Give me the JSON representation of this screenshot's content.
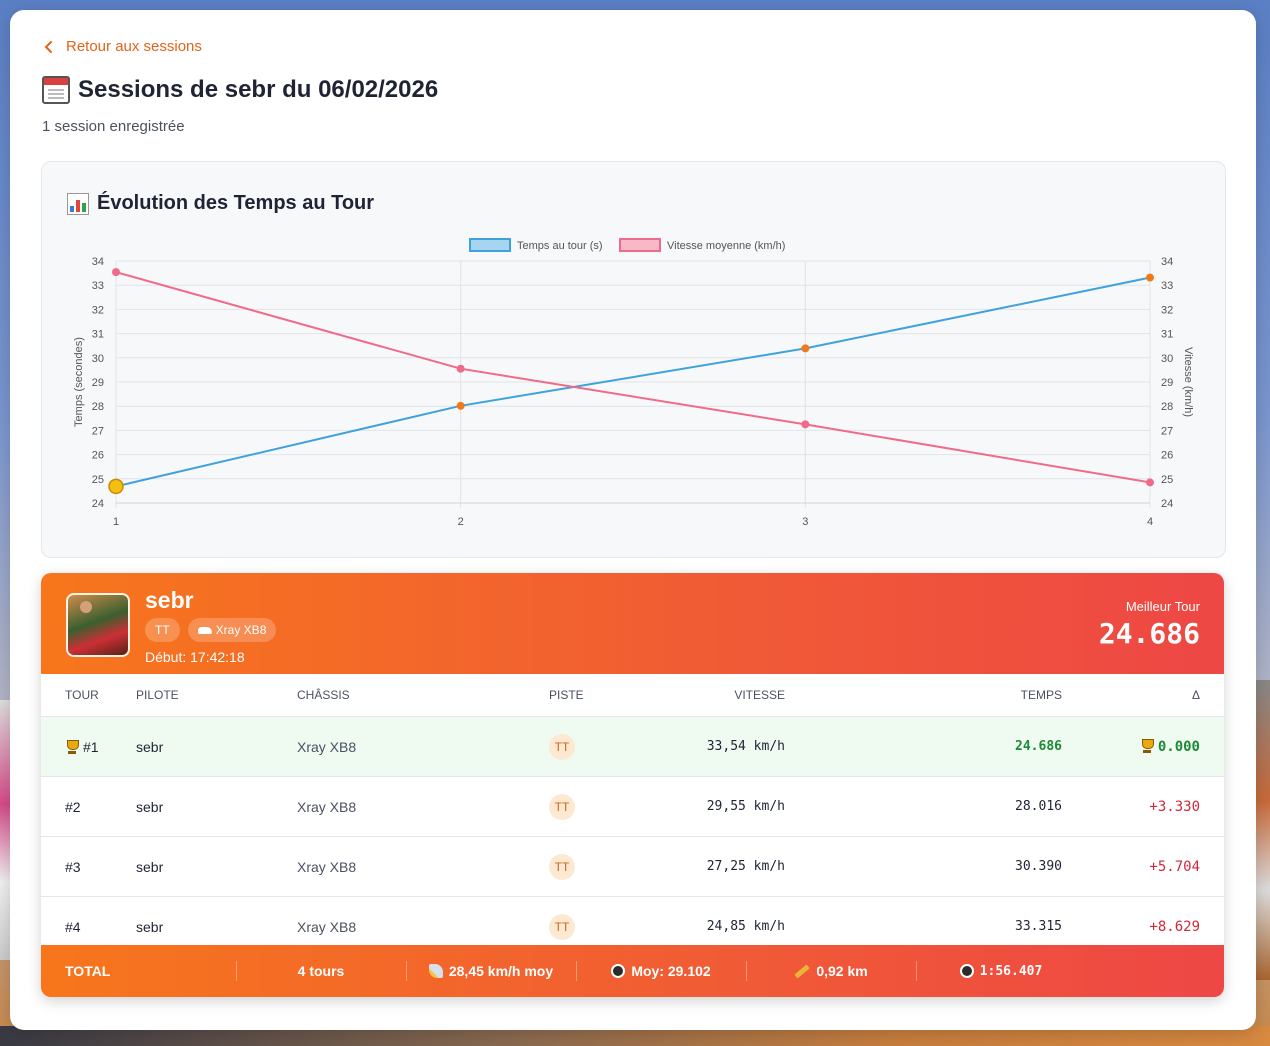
{
  "nav": {
    "back_label": "Retour aux sessions"
  },
  "header": {
    "title": "Sessions de sebr du 06/02/2026",
    "subtitle": "1 session enregistrée"
  },
  "chart": {
    "title": "Évolution des Temps au Tour",
    "legend": [
      "Temps au tour (s)",
      "Vitesse moyenne (km/h)"
    ],
    "left_axis_label": "Temps (secondes)",
    "right_axis_label": "Vitesse (km/h)"
  },
  "chart_data": {
    "type": "line",
    "x": [
      1,
      2,
      3,
      4
    ],
    "series": [
      {
        "name": "Temps au tour (s)",
        "values": [
          24.686,
          28.016,
          30.39,
          33.315
        ],
        "color": "#3fa2db",
        "point_color": "#f07a1a",
        "highlight_index": 0,
        "highlight_color": "#f5bf12",
        "axis": "left"
      },
      {
        "name": "Vitesse moyenne (km/h)",
        "values": [
          33.54,
          29.55,
          27.25,
          24.85
        ],
        "color": "#f06a8a",
        "point_color": "#f06a8a",
        "axis": "right"
      }
    ],
    "xlim": [
      1,
      4
    ],
    "ylim": [
      24,
      34
    ],
    "y2lim": [
      24,
      34
    ],
    "yticks": [
      24,
      25,
      26,
      27,
      28,
      29,
      30,
      31,
      32,
      33,
      34
    ],
    "xlabel": "",
    "ylabel": "Temps (secondes)",
    "y2label": "Vitesse (km/h)",
    "grid": true,
    "legend_position": "top"
  },
  "driver": {
    "name": "sebr",
    "track_chip": "TT",
    "chassis_chip": "Xray XB8",
    "start": "Début: 17:42:18",
    "best_label": "Meilleur Tour",
    "best_value": "24.686"
  },
  "table": {
    "headers": [
      "TOUR",
      "PILOTE",
      "CHÂSSIS",
      "PISTE",
      "VITESSE",
      "TEMPS",
      "Δ"
    ],
    "rows": [
      {
        "lap": "#1",
        "pilot": "sebr",
        "chassis": "Xray XB8",
        "track": "TT",
        "speed": "33,54 km/h",
        "time": "24.686",
        "delta": "0.000",
        "best": true
      },
      {
        "lap": "#2",
        "pilot": "sebr",
        "chassis": "Xray XB8",
        "track": "TT",
        "speed": "29,55 km/h",
        "time": "28.016",
        "delta": "+3.330",
        "best": false
      },
      {
        "lap": "#3",
        "pilot": "sebr",
        "chassis": "Xray XB8",
        "track": "TT",
        "speed": "27,25 km/h",
        "time": "30.390",
        "delta": "+5.704",
        "best": false
      },
      {
        "lap": "#4",
        "pilot": "sebr",
        "chassis": "Xray XB8",
        "track": "TT",
        "speed": "24,85 km/h",
        "time": "33.315",
        "delta": "+8.629",
        "best": false
      }
    ]
  },
  "total": {
    "label": "TOTAL",
    "laps": "4 tours",
    "avg_speed": "28,45 km/h moy",
    "avg_time": "Moy: 29.102",
    "distance": "0,92 km",
    "total_time": "1:56.407"
  },
  "colors": {
    "accent": "#e0651b",
    "header_gradient_start": "#f7761c",
    "header_gradient_end": "#ee4745",
    "best_green": "#1e8a3a",
    "delta_red": "#d2283a"
  }
}
